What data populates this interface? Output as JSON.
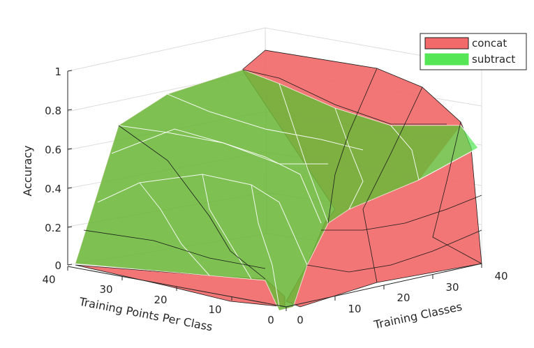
{
  "chart_data": {
    "type": "surface",
    "title": "",
    "zlabel": "Accuracy",
    "xlabel": "Training Points Per Class",
    "ylabel": "Training Classes",
    "xticks": [
      0,
      10,
      20,
      30,
      40
    ],
    "yticks": [
      0,
      10,
      20,
      30,
      40
    ],
    "zticks": [
      "0",
      "0.2",
      "0.4",
      "0.6",
      "0.8",
      "1"
    ],
    "zlim": [
      0,
      1
    ],
    "grid": true,
    "legend_position": "top-right",
    "legend": [
      "concat",
      "subtract"
    ],
    "colors": {
      "concat": "#f06060",
      "subtract": "#55e655",
      "overlap": "#7ba83a"
    },
    "series": [
      {
        "name": "concat",
        "approx_surface": "high accuracy (near 1) at many points per class and few classes, falling to about 0 for 0 points per class"
      },
      {
        "name": "subtract",
        "approx_surface": "peaks near 0.95 at 40 points per class and few classes, falling to about 0 for 0 points per class"
      }
    ]
  }
}
